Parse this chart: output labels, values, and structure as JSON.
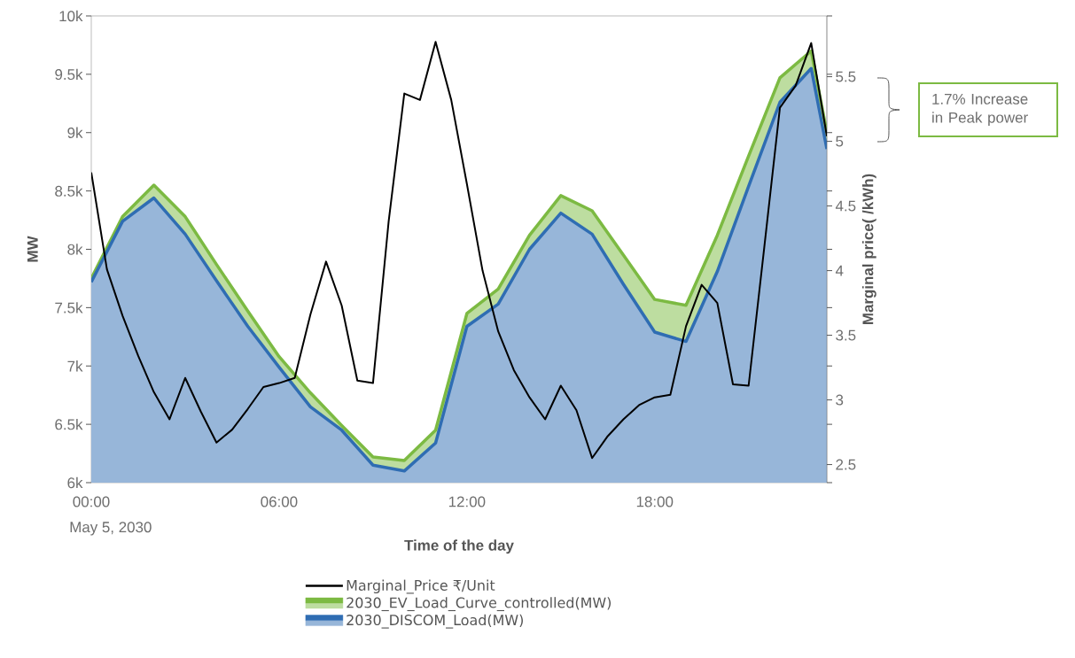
{
  "chart_data": {
    "type": "area",
    "xlabel": "Time of the day",
    "ylabel": "MW",
    "y2label": "Marginal price( /kWh)",
    "xlim": [
      0,
      23.5
    ],
    "xticks": [
      {
        "value": 0,
        "label": "00:00"
      },
      {
        "value": 6,
        "label": "06:00"
      },
      {
        "value": 12,
        "label": "12:00"
      },
      {
        "value": 18,
        "label": "18:00"
      }
    ],
    "ylim": [
      6000,
      10000
    ],
    "yticks": [
      {
        "value": 6000,
        "label": "6k"
      },
      {
        "value": 6500,
        "label": "6.5k"
      },
      {
        "value": 7000,
        "label": "7k"
      },
      {
        "value": 7500,
        "label": "7.5k"
      },
      {
        "value": 8000,
        "label": "8k"
      },
      {
        "value": 8500,
        "label": "8.5k"
      },
      {
        "value": 9000,
        "label": "9k"
      },
      {
        "value": 9500,
        "label": "9.5k"
      },
      {
        "value": 10000,
        "label": "10k"
      }
    ],
    "y2lim": [
      2.36,
      5.97
    ],
    "y2ticks": [
      2.5,
      3,
      3.5,
      4,
      4.5,
      5,
      5.5
    ],
    "legend": "bottom",
    "annotations": [
      "May 5, 2030",
      "1.7% Increase in Peak power"
    ],
    "series": [
      {
        "name": "Marginal_Price ₹/Unit",
        "type": "line",
        "axis": "y2",
        "color": "#000000",
        "x": [
          0,
          0.5,
          1,
          1.5,
          2,
          2.5,
          3,
          3.5,
          4,
          4.5,
          5,
          5.5,
          6,
          6.5,
          7,
          7.5,
          8,
          8.5,
          9,
          9.5,
          10,
          10.5,
          11,
          11.5,
          12,
          12.5,
          13,
          13.5,
          14,
          14.5,
          15,
          15.5,
          16,
          16.5,
          17,
          17.5,
          18,
          18.5,
          19,
          19.5,
          20,
          20.5,
          21,
          21.5,
          22,
          22.5,
          23,
          23.5
        ],
        "values": [
          4.76,
          4.01,
          3.65,
          3.34,
          3.06,
          2.85,
          3.17,
          2.91,
          2.67,
          2.77,
          2.93,
          3.1,
          3.13,
          3.17,
          3.66,
          4.07,
          3.73,
          3.15,
          3.13,
          4.38,
          5.37,
          5.32,
          5.77,
          5.32,
          4.67,
          4.0,
          3.53,
          3.23,
          3.02,
          2.85,
          3.11,
          2.92,
          2.55,
          2.72,
          2.85,
          2.96,
          3.02,
          3.04,
          3.57,
          3.89,
          3.75,
          3.12,
          3.11,
          4.18,
          5.26,
          5.43,
          5.76,
          5.04
        ]
      },
      {
        "name": "2030_EV_Load_Curve_controlled(MW)",
        "color": "#7cba42",
        "x": [
          0,
          1,
          2,
          3,
          4,
          5,
          6,
          7,
          8,
          9,
          10,
          11,
          12,
          13,
          14,
          15,
          16,
          17,
          18,
          19,
          20,
          21,
          22,
          23,
          23.5
        ],
        "values": [
          7750,
          8280,
          8550,
          8280,
          7870,
          7470,
          7080,
          6770,
          6490,
          6220,
          6190,
          6450,
          7450,
          7660,
          8120,
          8460,
          8330,
          7950,
          7570,
          7520,
          8120,
          8800,
          9470,
          9700,
          9000
        ]
      },
      {
        "name": "2030_DISCOM_Load(MW)",
        "color": "#2f6db3",
        "x": [
          0,
          1,
          2,
          3,
          4,
          5,
          6,
          7,
          8,
          9,
          10,
          11,
          12,
          13,
          14,
          15,
          16,
          17,
          18,
          19,
          20,
          21,
          22,
          23,
          23.5
        ],
        "values": [
          7720,
          8240,
          8440,
          8130,
          7730,
          7340,
          6990,
          6650,
          6450,
          6150,
          6100,
          6340,
          7340,
          7530,
          8000,
          8310,
          8130,
          7700,
          7290,
          7210,
          7810,
          8540,
          9260,
          9550,
          8860
        ]
      }
    ]
  }
}
